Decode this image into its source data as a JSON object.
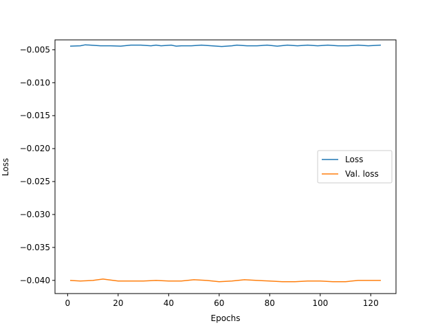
{
  "chart_data": {
    "type": "line",
    "title": "",
    "xlabel": "Epochs",
    "ylabel": "Loss",
    "xlim": [
      -5,
      130
    ],
    "ylim": [
      -0.042,
      -0.0035
    ],
    "xticks": [
      0,
      20,
      40,
      60,
      80,
      100,
      120
    ],
    "yticks": [
      -0.04,
      -0.035,
      -0.03,
      -0.025,
      -0.02,
      -0.015,
      -0.01,
      -0.005
    ],
    "xtick_labels": [
      "0",
      "20",
      "40",
      "60",
      "80",
      "100",
      "120"
    ],
    "ytick_labels": [
      "−0.040",
      "−0.035",
      "−0.030",
      "−0.025",
      "−0.020",
      "−0.015",
      "−0.010",
      "−0.005"
    ],
    "grid": false,
    "legend_position": "center-right",
    "series": [
      {
        "name": "Loss",
        "color": "#1f77b4",
        "x": [
          1,
          5,
          7,
          9,
          13,
          17,
          21,
          25,
          29,
          33,
          35,
          37,
          41,
          43,
          45,
          49,
          53,
          57,
          61,
          65,
          67,
          71,
          75,
          79,
          83,
          87,
          91,
          95,
          99,
          103,
          107,
          111,
          115,
          119,
          124
        ],
        "y": [
          -0.00445,
          -0.0044,
          -0.00425,
          -0.0043,
          -0.0044,
          -0.0044,
          -0.00445,
          -0.0043,
          -0.0043,
          -0.0044,
          -0.0043,
          -0.0044,
          -0.0043,
          -0.00445,
          -0.0044,
          -0.0044,
          -0.0043,
          -0.0044,
          -0.0045,
          -0.0044,
          -0.0043,
          -0.0044,
          -0.0044,
          -0.0043,
          -0.00445,
          -0.0043,
          -0.0044,
          -0.0043,
          -0.0044,
          -0.0043,
          -0.0044,
          -0.0044,
          -0.0043,
          -0.0044,
          -0.0043
        ]
      },
      {
        "name": "Val. loss",
        "color": "#ff7f0e",
        "x": [
          1,
          5,
          10,
          14,
          16,
          20,
          25,
          30,
          35,
          40,
          45,
          50,
          55,
          60,
          65,
          70,
          75,
          80,
          85,
          90,
          95,
          100,
          105,
          110,
          115,
          120,
          124
        ],
        "y": [
          -0.04,
          -0.0401,
          -0.04,
          -0.0398,
          -0.0399,
          -0.0401,
          -0.0401,
          -0.0401,
          -0.04,
          -0.0401,
          -0.0401,
          -0.0399,
          -0.04,
          -0.0402,
          -0.0401,
          -0.0399,
          -0.04,
          -0.0401,
          -0.0402,
          -0.0402,
          -0.0401,
          -0.0401,
          -0.0402,
          -0.0402,
          -0.04,
          -0.04,
          -0.04
        ]
      }
    ]
  }
}
